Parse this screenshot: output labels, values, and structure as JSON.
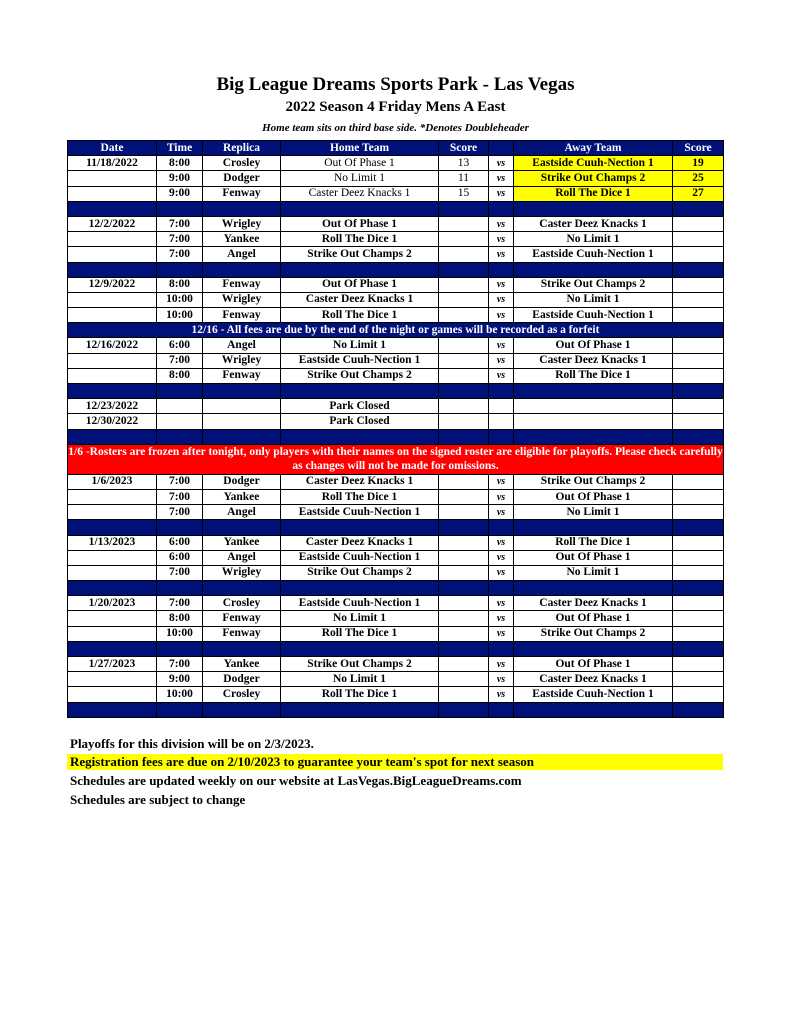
{
  "title": "Big League Dreams Sports Park - Las Vegas",
  "subtitle": "2022 Season 4 Friday Mens A East",
  "note": "Home team sits on third base side.  *Denotes Doubleheader",
  "headers": [
    "Date",
    "Time",
    "Replica",
    "Home Team",
    "Score",
    "",
    "Away Team",
    "Score"
  ],
  "rows": [
    {
      "t": "g",
      "c": [
        "11/18/2022",
        "8:00",
        "Crosley",
        "Out Of Phase 1",
        "13",
        "vs",
        "Eastside Cuuh-Nection 1",
        "19"
      ],
      "highlight": true
    },
    {
      "t": "g",
      "c": [
        "",
        "9:00",
        "Dodger",
        "No Limit 1",
        "11",
        "vs",
        "Strike Out Champs 2",
        "25"
      ],
      "highlight": true
    },
    {
      "t": "g",
      "c": [
        "",
        "9:00",
        "Fenway",
        "Caster Deez Knacks 1",
        "15",
        "vs",
        "Roll The Dice 1",
        "27"
      ],
      "highlight": true
    },
    {
      "t": "s"
    },
    {
      "t": "g",
      "c": [
        "12/2/2022",
        "7:00",
        "Wrigley",
        "Out Of Phase 1",
        "",
        "vs",
        "Caster Deez Knacks 1",
        ""
      ]
    },
    {
      "t": "g",
      "c": [
        "",
        "7:00",
        "Yankee",
        "Roll The Dice 1",
        "",
        "vs",
        "No Limit 1",
        ""
      ]
    },
    {
      "t": "g",
      "c": [
        "",
        "7:00",
        "Angel",
        "Strike Out Champs 2",
        "",
        "vs",
        "Eastside Cuuh-Nection 1",
        ""
      ]
    },
    {
      "t": "s"
    },
    {
      "t": "g",
      "c": [
        "12/9/2022",
        "8:00",
        "Fenway",
        "Out Of Phase 1",
        "",
        "vs",
        "Strike Out Champs 2",
        ""
      ]
    },
    {
      "t": "g",
      "c": [
        "",
        "10:00",
        "Wrigley",
        "Caster Deez Knacks 1",
        "",
        "vs",
        "No Limit 1",
        ""
      ]
    },
    {
      "t": "g",
      "c": [
        "",
        "10:00",
        "Fenway",
        "Roll The Dice 1",
        "",
        "vs",
        "Eastside Cuuh-Nection 1",
        ""
      ]
    },
    {
      "t": "nb",
      "text": "12/16 - All fees are due by the end of the night or games will be recorded as a forfeit"
    },
    {
      "t": "g",
      "c": [
        "12/16/2022",
        "6:00",
        "Angel",
        "No Limit 1",
        "",
        "vs",
        "Out Of Phase 1",
        ""
      ]
    },
    {
      "t": "g",
      "c": [
        "",
        "7:00",
        "Wrigley",
        "Eastside Cuuh-Nection 1",
        "",
        "vs",
        "Caster Deez Knacks 1",
        ""
      ]
    },
    {
      "t": "g",
      "c": [
        "",
        "8:00",
        "Fenway",
        "Strike Out Champs 2",
        "",
        "vs",
        "Roll The Dice 1",
        ""
      ]
    },
    {
      "t": "s"
    },
    {
      "t": "g",
      "c": [
        "12/23/2022",
        "",
        "",
        "Park Closed",
        "",
        "",
        "",
        ""
      ]
    },
    {
      "t": "g",
      "c": [
        "12/30/2022",
        "",
        "",
        "Park Closed",
        "",
        "",
        "",
        ""
      ]
    },
    {
      "t": "s"
    },
    {
      "t": "nr",
      "text": "1/6 -Rosters are frozen after tonight, only players with their names on the signed roster are eligible for playoffs. Please check carefully as changes will not be made for omissions."
    },
    {
      "t": "g",
      "c": [
        "1/6/2023",
        "7:00",
        "Dodger",
        "Caster Deez Knacks 1",
        "",
        "vs",
        "Strike Out Champs 2",
        ""
      ]
    },
    {
      "t": "g",
      "c": [
        "",
        "7:00",
        "Yankee",
        "Roll The Dice 1",
        "",
        "vs",
        "Out Of Phase 1",
        ""
      ]
    },
    {
      "t": "g",
      "c": [
        "",
        "7:00",
        "Angel",
        "Eastside Cuuh-Nection 1",
        "",
        "vs",
        "No Limit 1",
        ""
      ]
    },
    {
      "t": "s"
    },
    {
      "t": "g",
      "c": [
        "1/13/2023",
        "6:00",
        "Yankee",
        "Caster Deez Knacks 1",
        "",
        "vs",
        "Roll The Dice 1",
        ""
      ]
    },
    {
      "t": "g",
      "c": [
        "",
        "6:00",
        "Angel",
        "Eastside Cuuh-Nection 1",
        "",
        "vs",
        "Out Of Phase 1",
        ""
      ]
    },
    {
      "t": "g",
      "c": [
        "",
        "7:00",
        "Wrigley",
        "Strike Out Champs 2",
        "",
        "vs",
        "No Limit 1",
        ""
      ]
    },
    {
      "t": "s"
    },
    {
      "t": "g",
      "c": [
        "1/20/2023",
        "7:00",
        "Crosley",
        "Eastside Cuuh-Nection 1",
        "",
        "vs",
        "Caster Deez Knacks 1",
        ""
      ]
    },
    {
      "t": "g",
      "c": [
        "",
        "8:00",
        "Fenway",
        "No Limit 1",
        "",
        "vs",
        "Out Of Phase 1",
        ""
      ]
    },
    {
      "t": "g",
      "c": [
        "",
        "10:00",
        "Fenway",
        "Roll The Dice 1",
        "",
        "vs",
        "Strike Out Champs 2",
        ""
      ]
    },
    {
      "t": "s"
    },
    {
      "t": "g",
      "c": [
        "1/27/2023",
        "7:00",
        "Yankee",
        "Strike Out Champs 2",
        "",
        "vs",
        "Out Of Phase 1",
        ""
      ]
    },
    {
      "t": "g",
      "c": [
        "",
        "9:00",
        "Dodger",
        "No Limit 1",
        "",
        "vs",
        "Caster Deez Knacks 1",
        ""
      ]
    },
    {
      "t": "g",
      "c": [
        "",
        "10:00",
        "Crosley",
        "Roll The Dice 1",
        "",
        "vs",
        "Eastside Cuuh-Nection 1",
        ""
      ]
    },
    {
      "t": "s"
    }
  ],
  "footer": {
    "playoffs": "Playoffs for this division will be on 2/3/2023.",
    "registration": "Registration fees are due on 2/10/2023 to guarantee your team's spot for next season",
    "website": "Schedules are updated weekly on our website at LasVegas.BigLeagueDreams.com",
    "change": "Schedules are subject to change"
  },
  "colors": {
    "header": "#00127a",
    "highlight": "#ffff00",
    "notice": "#ff0000"
  }
}
